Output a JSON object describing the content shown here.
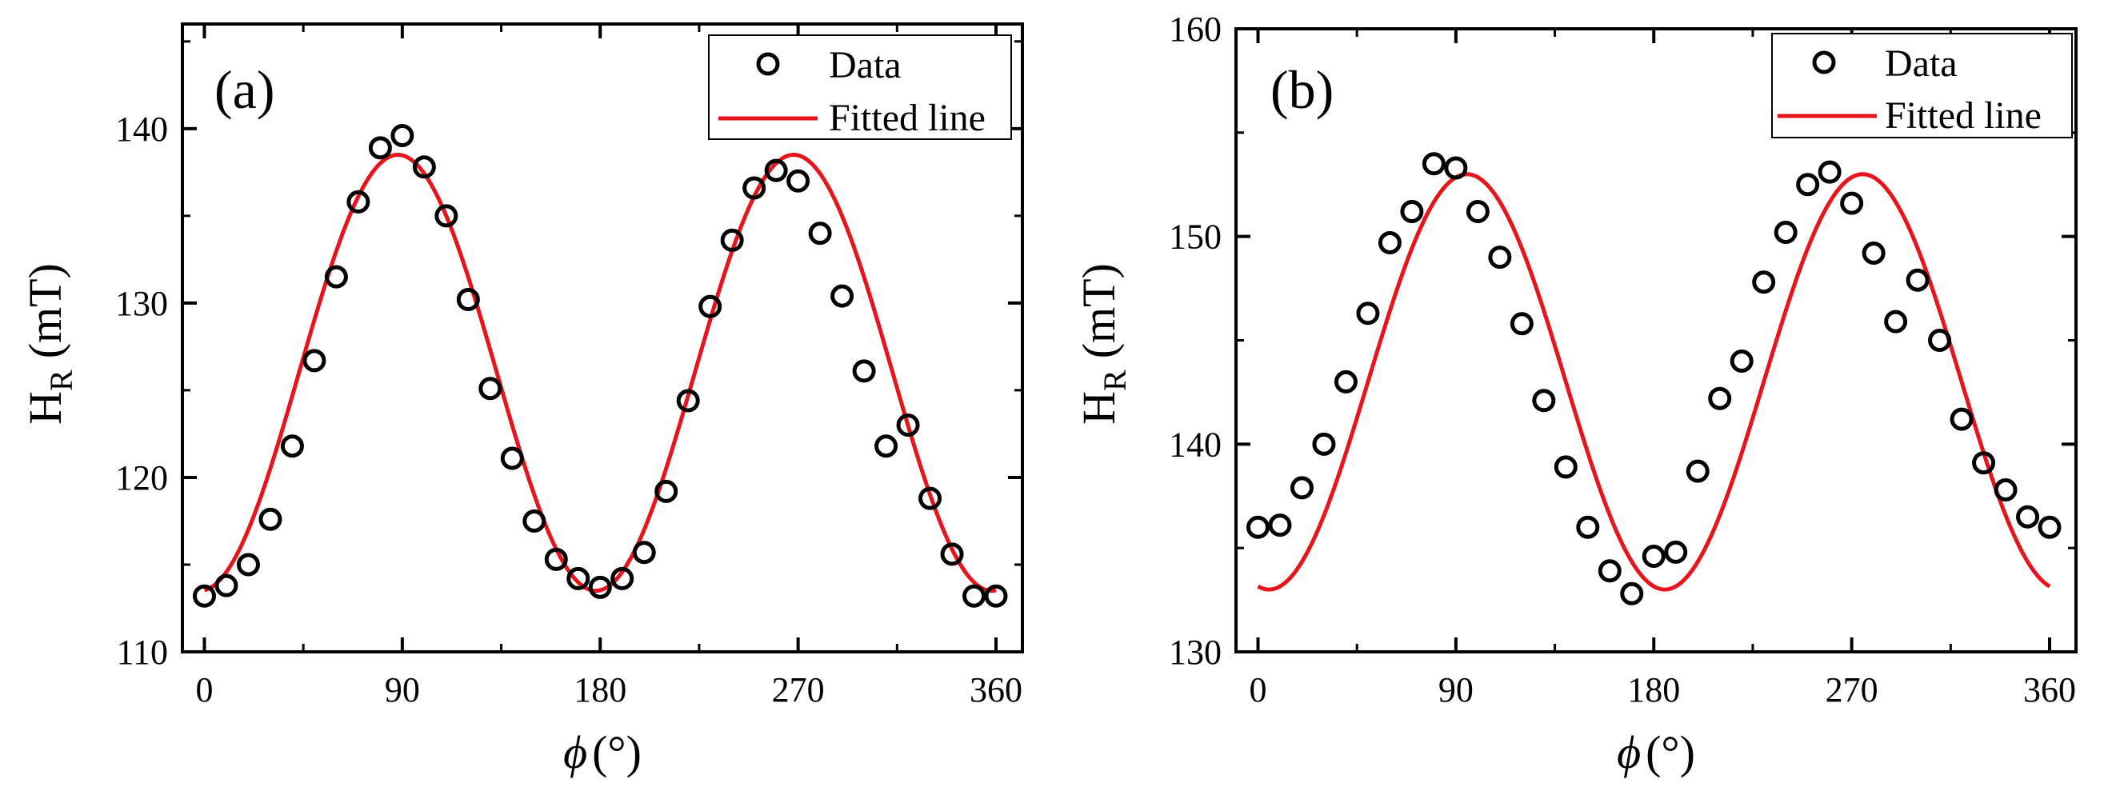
{
  "chart_data": [
    {
      "type": "scatter",
      "panel_label": "(a)",
      "ylabel": "H",
      "ylabel_sub": "R",
      "ylabel_unit": "(mT)",
      "xlabel_symbol": "ϕ",
      "xlabel_unit": "(°)",
      "xlim": [
        -10,
        372
      ],
      "ylim": [
        110,
        146
      ],
      "xticks": [
        0,
        90,
        180,
        270,
        360
      ],
      "yticks": [
        110,
        120,
        130,
        140
      ],
      "legend": {
        "position": "top-right",
        "entries": [
          "Data",
          "Fitted line"
        ]
      },
      "series": [
        {
          "name": "Data",
          "marker": "open-circle",
          "x": [
            0,
            10,
            20,
            30,
            40,
            50,
            60,
            70,
            80,
            90,
            100,
            110,
            120,
            130,
            140,
            150,
            160,
            170,
            180,
            190,
            200,
            210,
            220,
            230,
            240,
            250,
            260,
            270,
            280,
            290,
            300,
            310,
            320,
            330,
            340,
            350,
            360
          ],
          "y": [
            113.2,
            113.8,
            115.0,
            117.6,
            121.8,
            126.7,
            131.5,
            135.8,
            138.9,
            139.6,
            137.8,
            135.0,
            130.2,
            125.1,
            121.1,
            117.5,
            115.3,
            114.2,
            113.7,
            114.2,
            115.7,
            119.2,
            124.4,
            129.8,
            133.6,
            136.6,
            137.6,
            137.0,
            134.0,
            130.4,
            126.1,
            121.8,
            123.0,
            118.8,
            115.6,
            113.2,
            113.2
          ]
        },
        {
          "name": "Fitted line",
          "color": "#e8141b",
          "model": "y = y0 + A*sin^2(x - phase)",
          "y0": 113.5,
          "A": 25.0,
          "phase_deg": -2,
          "x_range": [
            0,
            360
          ]
        }
      ]
    },
    {
      "type": "scatter",
      "panel_label": "(b)",
      "ylabel": "H",
      "ylabel_sub": "R",
      "ylabel_unit": "(mT)",
      "xlabel_symbol": "ϕ",
      "xlabel_unit": "(°)",
      "xlim": [
        -10,
        372
      ],
      "ylim": [
        130,
        160
      ],
      "xticks": [
        0,
        90,
        180,
        270,
        360
      ],
      "yticks": [
        130,
        140,
        150,
        160
      ],
      "legend": {
        "position": "top-right",
        "entries": [
          "Data",
          "Fitted line"
        ]
      },
      "series": [
        {
          "name": "Data",
          "marker": "open-circle",
          "x": [
            0,
            10,
            20,
            30,
            40,
            50,
            60,
            70,
            80,
            90,
            100,
            110,
            120,
            130,
            140,
            150,
            160,
            170,
            180,
            190,
            200,
            210,
            220,
            230,
            240,
            250,
            260,
            270,
            280,
            290,
            300,
            310,
            320,
            330,
            340,
            350,
            360
          ],
          "y": [
            136.0,
            136.1,
            137.9,
            140.0,
            143.0,
            146.3,
            149.7,
            151.2,
            153.5,
            153.3,
            151.2,
            149.0,
            145.8,
            142.1,
            138.9,
            136.0,
            133.9,
            132.8,
            134.6,
            134.8,
            138.7,
            142.2,
            144.0,
            147.8,
            150.2,
            152.5,
            153.1,
            151.6,
            149.2,
            145.9,
            147.9,
            145.0,
            141.2,
            139.1,
            137.8,
            136.5,
            136.0
          ]
        },
        {
          "name": "Fitted line",
          "color": "#e8141b",
          "model": "y = y0 + A*sin^2(x - phase)",
          "y0": 133.0,
          "A": 20.0,
          "phase_deg": 5,
          "x_range": [
            0,
            360
          ]
        }
      ]
    }
  ]
}
